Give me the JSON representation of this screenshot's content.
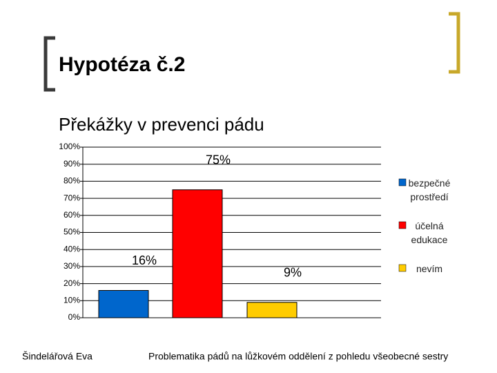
{
  "header": {
    "title": "Hypotéza č.2"
  },
  "chart_data": {
    "type": "bar",
    "title": "Překážky v prevenci pádu",
    "categories": [
      null
    ],
    "series": [
      {
        "name": "bezpečné prostředí",
        "color": "#0066cc",
        "values": [
          16
        ],
        "value_labels": [
          "16%"
        ]
      },
      {
        "name": "účelná edukace",
        "color": "#ff0000",
        "values": [
          75
        ],
        "value_labels": [
          "75%"
        ]
      },
      {
        "name": "nevím",
        "color": "#ffcc00",
        "values": [
          9
        ],
        "value_labels": [
          "9%"
        ]
      }
    ],
    "ylim": [
      0,
      100
    ],
    "yticks": [
      {
        "value": 0,
        "label": "0%"
      },
      {
        "value": 10,
        "label": "10%"
      },
      {
        "value": 20,
        "label": "20%"
      },
      {
        "value": 30,
        "label": "30%"
      },
      {
        "value": 40,
        "label": "40%"
      },
      {
        "value": 50,
        "label": "50%"
      },
      {
        "value": 60,
        "label": "60%"
      },
      {
        "value": 70,
        "label": "70%"
      },
      {
        "value": 80,
        "label": "80%"
      },
      {
        "value": 90,
        "label": "90%"
      },
      {
        "value": 100,
        "label": "100%"
      }
    ],
    "grid": true,
    "legend": "right"
  },
  "footer": {
    "author": "Šindelářová Eva",
    "topic": "Problematika pádů na lůžkovém oddělení z pohledu všeobecné sestry"
  }
}
